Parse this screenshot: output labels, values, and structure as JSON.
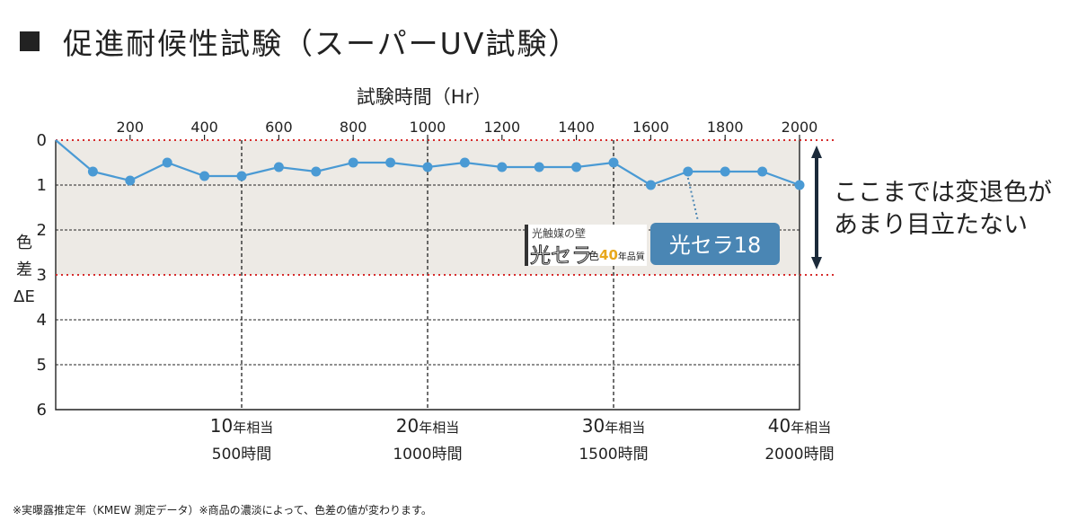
{
  "title": "促進耐候性試験（スーパーUV試験）",
  "chart_data": {
    "type": "line",
    "title": "促進耐候性試験（スーパーUV試験）",
    "xlabel": "試験時間（Hr）",
    "ylabel_chars": [
      "色",
      "差",
      "ΔE"
    ],
    "xlim": [
      0,
      2000
    ],
    "ylim": [
      0,
      6
    ],
    "y_inverted": true,
    "x_ticks": [
      200,
      400,
      600,
      800,
      1000,
      1200,
      1400,
      1600,
      1800,
      2000
    ],
    "y_ticks": [
      0,
      1,
      2,
      3,
      4,
      5,
      6
    ],
    "series": [
      {
        "name": "光セラ18",
        "x": [
          0,
          100,
          200,
          300,
          400,
          500,
          600,
          700,
          800,
          900,
          1000,
          1100,
          1200,
          1300,
          1400,
          1500,
          1600,
          1700,
          1800,
          1900,
          2000
        ],
        "y": [
          0,
          0.7,
          0.9,
          0.5,
          0.8,
          0.8,
          0.6,
          0.7,
          0.5,
          0.5,
          0.6,
          0.5,
          0.6,
          0.6,
          0.6,
          0.5,
          1.0,
          0.7,
          0.7,
          0.7,
          1.0
        ],
        "color": "#4a9ad4"
      }
    ],
    "shaded_band": {
      "from": 0,
      "to": 3,
      "color": "#edeae5"
    },
    "threshold_lines": [
      0,
      3
    ],
    "threshold_color": "#d62d2d",
    "year_markers": [
      {
        "x": 500,
        "years": "10",
        "unit": "年相当",
        "hours": "500時間"
      },
      {
        "x": 1000,
        "years": "20",
        "unit": "年相当",
        "hours": "1000時間"
      },
      {
        "x": 1500,
        "years": "30",
        "unit": "年相当",
        "hours": "1500時間"
      },
      {
        "x": 2000,
        "years": "40",
        "unit": "年相当",
        "hours": "2000時間"
      }
    ],
    "series_label": "光セラ18",
    "series_label_color": "#4a86b4",
    "logo": {
      "line1": "光触媒の壁",
      "main": "光セラ",
      "tail": "色",
      "years": "40",
      "suffix": "年品質"
    },
    "annotation": [
      "ここまでは変退色が",
      "あまり目立たない"
    ]
  },
  "footnote": "※実曝露推定年（KMEW 測定データ）※商品の濃淡によって、色差の値が変わります。"
}
